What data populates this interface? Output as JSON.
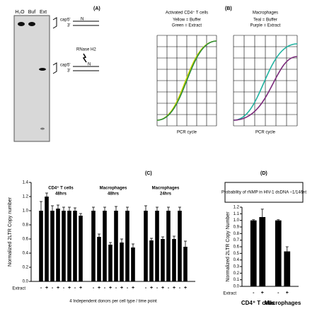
{
  "panel_a": {
    "label": "(A)",
    "lanes": [
      "H₂O",
      "Buf",
      "Ext"
    ],
    "strand_top": "5'",
    "strand_bottom": "3'",
    "cap": "cap",
    "base": "N",
    "enzyme": "RNase H2"
  },
  "panel_b": {
    "label": "(B)",
    "plots": [
      {
        "title": "Activated CD4⁺ T cells",
        "legend": [
          "Yellow = Buffer",
          "Green = Extract"
        ],
        "xlabel": "PCR cycle"
      },
      {
        "title": "Macrophages",
        "legend": [
          "Teal = Buffer",
          "Purple = Extract"
        ],
        "xlabel": "PCR cycle"
      }
    ]
  },
  "chart_data": [
    {
      "type": "bar",
      "panel": "(C)",
      "ylabel": "Normalized 2LTR Copy number",
      "xlabel": "4 Independent donors per cell type / time point",
      "row_label": "Extract",
      "groups": [
        {
          "label": "CD4⁺ T cells",
          "sublabel": "48hrs"
        },
        {
          "label": "Macrophages",
          "sublabel": "48hrs"
        },
        {
          "label": "Macrophages",
          "sublabel": "24hrs"
        }
      ],
      "categories": [
        "-",
        "+",
        "-",
        "+",
        "-",
        "+",
        "-",
        "+",
        "-",
        "+",
        "-",
        "+",
        "-",
        "+",
        "-",
        "+",
        "-",
        "+",
        "-",
        "+",
        "-",
        "+",
        "-",
        "+"
      ],
      "values": [
        1.0,
        1.2,
        1.0,
        1.03,
        1.0,
        1.0,
        1.0,
        0.93,
        1.0,
        0.63,
        1.0,
        0.52,
        1.0,
        0.55,
        1.0,
        0.48,
        1.0,
        0.58,
        1.0,
        0.6,
        1.0,
        0.6,
        1.0,
        0.49
      ],
      "errors": [
        0.13,
        0.05,
        0.07,
        0.05,
        0.05,
        0.05,
        0.04,
        0.03,
        0.05,
        0.04,
        0.05,
        0.03,
        0.06,
        0.05,
        0.05,
        0.05,
        0.07,
        0.03,
        0.05,
        0.03,
        0.05,
        0.04,
        0.05,
        0.08
      ],
      "color": "#000000",
      "ylim": [
        0,
        1.4
      ],
      "yticks": [
        {
          "value": 0,
          "label": "0.0"
        },
        0.2,
        0.4,
        0.6,
        0.8,
        {
          "value": 1,
          "label": "1.0"
        },
        1.2,
        1.4
      ]
    },
    {
      "type": "bar",
      "panel": "(D)",
      "note": "Probability of rNMP in HIV-1 dsDNA ~1/146nt",
      "ylabel": "Normalized 2LTR Copy Number",
      "row_label": "Extract",
      "groups": [
        {
          "label": "CD4⁺ T cells"
        },
        {
          "label": "Macrophages"
        }
      ],
      "categories": [
        "-",
        "+",
        "-",
        "+"
      ],
      "values": [
        1.0,
        1.05,
        1.0,
        0.53
      ],
      "errors": [
        0.01,
        0.12,
        0.01,
        0.07
      ],
      "color": "#000000",
      "ylim": [
        0,
        1.2
      ],
      "yticks": [
        {
          "value": 0,
          "label": "0.0"
        },
        0.1,
        0.2,
        0.3,
        0.4,
        0.5,
        0.6,
        0.7,
        0.8,
        0.9,
        {
          "value": 1,
          "label": "1.0"
        },
        1.1,
        1.2
      ]
    }
  ]
}
